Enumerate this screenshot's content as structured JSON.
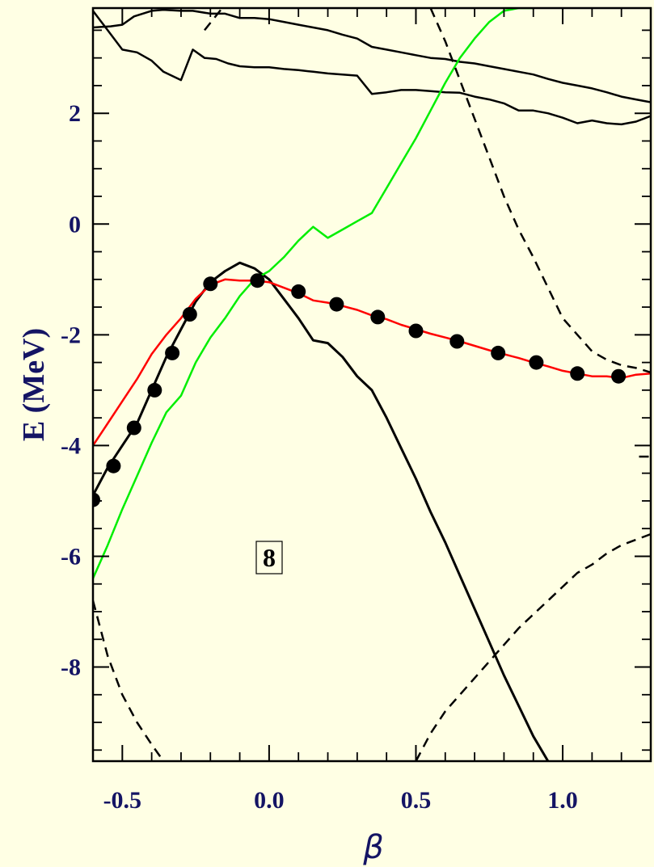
{
  "chart_data": {
    "type": "line",
    "xlabel": "β",
    "ylabel": "E (MeV)",
    "xlim": [
      -0.6,
      1.3
    ],
    "ylim": [
      -9.7,
      3.9
    ],
    "x_ticks": [
      -0.5,
      0.0,
      0.5,
      1.0
    ],
    "x_tick_labels": [
      "-0.5",
      "0.0",
      "0.5",
      "1.0"
    ],
    "y_ticks": [
      -8,
      -6,
      -4,
      -2,
      0,
      2
    ],
    "y_tick_labels": [
      "-8",
      "-6",
      "-4",
      "-2",
      "0",
      "2"
    ],
    "annotation": "8",
    "grid": false,
    "series": [
      {
        "style": "solid",
        "color": "#000000",
        "x": [
          -0.6,
          -0.54,
          -0.5,
          -0.46,
          -0.4,
          -0.36,
          -0.3,
          -0.26,
          -0.2,
          -0.15,
          -0.1,
          -0.05,
          0.0,
          0.05,
          0.1,
          0.15,
          0.2,
          0.25,
          0.3,
          0.35,
          0.4,
          0.45,
          0.5,
          0.55,
          0.6,
          0.65,
          0.7,
          0.75,
          0.8,
          0.85,
          0.9,
          0.95,
          1.0,
          1.05,
          1.1,
          1.15,
          1.2,
          1.25,
          1.3
        ],
        "y": [
          3.55,
          3.57,
          3.6,
          3.75,
          3.85,
          3.87,
          3.85,
          3.85,
          3.8,
          3.8,
          3.72,
          3.72,
          3.7,
          3.65,
          3.6,
          3.55,
          3.5,
          3.42,
          3.35,
          3.2,
          3.15,
          3.1,
          3.05,
          3.0,
          2.98,
          2.93,
          2.9,
          2.85,
          2.8,
          2.75,
          2.7,
          2.62,
          2.55,
          2.5,
          2.45,
          2.38,
          2.3,
          2.25,
          2.2
        ]
      },
      {
        "style": "solid",
        "color": "#000000",
        "x": [
          -0.6,
          -0.55,
          -0.5,
          -0.45,
          -0.4,
          -0.36,
          -0.3,
          -0.26,
          -0.22,
          -0.18,
          -0.14,
          -0.1,
          -0.05,
          0.0,
          0.05,
          0.1,
          0.15,
          0.2,
          0.25,
          0.3,
          0.35,
          0.4,
          0.45,
          0.5,
          0.55,
          0.6,
          0.65,
          0.7,
          0.75,
          0.8,
          0.85,
          0.9,
          0.95,
          1.0,
          1.05,
          1.1,
          1.15,
          1.2,
          1.25,
          1.3
        ],
        "y": [
          3.85,
          3.5,
          3.15,
          3.1,
          2.95,
          2.75,
          2.6,
          3.15,
          3.0,
          2.98,
          2.9,
          2.85,
          2.83,
          2.83,
          2.8,
          2.78,
          2.75,
          2.72,
          2.7,
          2.68,
          2.35,
          2.38,
          2.42,
          2.42,
          2.4,
          2.38,
          2.37,
          2.3,
          2.25,
          2.18,
          2.05,
          2.05,
          2.0,
          1.92,
          1.82,
          1.87,
          1.82,
          1.8,
          1.85,
          1.95
        ]
      },
      {
        "style": "solid",
        "color": "#000000",
        "x": [
          -0.6,
          -0.55,
          -0.5,
          -0.45,
          -0.4,
          -0.35,
          -0.3,
          -0.25,
          -0.2,
          -0.15,
          -0.1,
          -0.05,
          0.0,
          0.05,
          0.1,
          0.15,
          0.2,
          0.25,
          0.3,
          0.35,
          0.4,
          0.45,
          0.5,
          0.55,
          0.6,
          0.65,
          0.7,
          0.75,
          0.8,
          0.85,
          0.9,
          0.95
        ],
        "y": [
          -4.9,
          -4.4,
          -4.0,
          -3.6,
          -3.0,
          -2.4,
          -1.9,
          -1.4,
          -1.05,
          -0.85,
          -0.7,
          -0.8,
          -1.0,
          -1.35,
          -1.7,
          -2.1,
          -2.15,
          -2.4,
          -2.75,
          -3.0,
          -3.5,
          -4.05,
          -4.6,
          -5.2,
          -5.75,
          -6.35,
          -6.95,
          -7.55,
          -8.15,
          -8.7,
          -9.25,
          -9.7
        ]
      },
      {
        "style": "solid",
        "color": "#ff0000",
        "x": [
          -0.6,
          -0.55,
          -0.5,
          -0.45,
          -0.4,
          -0.35,
          -0.3,
          -0.25,
          -0.2,
          -0.15,
          -0.1,
          -0.05,
          0.0,
          0.05,
          0.1,
          0.15,
          0.2,
          0.25,
          0.3,
          0.35,
          0.4,
          0.45,
          0.5,
          0.55,
          0.6,
          0.65,
          0.7,
          0.75,
          0.8,
          0.85,
          0.9,
          0.95,
          1.0,
          1.05,
          1.1,
          1.15,
          1.2,
          1.25,
          1.3
        ],
        "y": [
          -4.0,
          -3.6,
          -3.2,
          -2.8,
          -2.35,
          -2.0,
          -1.7,
          -1.35,
          -1.1,
          -1.0,
          -1.02,
          -1.02,
          -1.05,
          -1.15,
          -1.25,
          -1.38,
          -1.42,
          -1.48,
          -1.55,
          -1.65,
          -1.72,
          -1.82,
          -1.9,
          -1.98,
          -2.05,
          -2.12,
          -2.2,
          -2.28,
          -2.35,
          -2.42,
          -2.5,
          -2.57,
          -2.65,
          -2.7,
          -2.75,
          -2.75,
          -2.78,
          -2.72,
          -2.7
        ]
      },
      {
        "style": "solid",
        "color": "#00ee00",
        "x": [
          -0.6,
          -0.55,
          -0.5,
          -0.45,
          -0.4,
          -0.35,
          -0.3,
          -0.25,
          -0.2,
          -0.15,
          -0.1,
          -0.05,
          0.0,
          0.05,
          0.1,
          0.15,
          0.2,
          0.25,
          0.3,
          0.35,
          0.4,
          0.45,
          0.5,
          0.55,
          0.6,
          0.65,
          0.7,
          0.75,
          0.8,
          0.85,
          0.9
        ],
        "y": [
          -6.4,
          -5.8,
          -5.15,
          -4.55,
          -3.95,
          -3.4,
          -3.1,
          -2.5,
          -2.05,
          -1.7,
          -1.3,
          -1.0,
          -0.85,
          -0.6,
          -0.3,
          -0.05,
          -0.25,
          -0.1,
          0.05,
          0.2,
          0.65,
          1.1,
          1.55,
          2.05,
          2.55,
          3.0,
          3.35,
          3.65,
          3.85,
          3.9,
          3.9
        ]
      },
      {
        "style": "dashed",
        "color": "#000000",
        "x": [
          0.55,
          0.6,
          0.65,
          0.7,
          0.75,
          0.8,
          0.85,
          0.9,
          0.95,
          1.0,
          1.05,
          1.1,
          1.15,
          1.2,
          1.25,
          1.3
        ],
        "y": [
          3.9,
          3.3,
          2.6,
          1.9,
          1.2,
          0.5,
          -0.1,
          -0.6,
          -1.15,
          -1.7,
          -2.0,
          -2.3,
          -2.45,
          -2.55,
          -2.6,
          -2.68
        ]
      },
      {
        "style": "dashed",
        "color": "#000000",
        "x": [
          -0.6,
          -0.55,
          -0.5,
          -0.45,
          -0.4,
          -0.36
        ],
        "y": [
          -6.8,
          -7.8,
          -8.5,
          -9.0,
          -9.4,
          -9.7
        ]
      },
      {
        "style": "dashed",
        "color": "#000000",
        "x": [
          0.5,
          0.55,
          0.6,
          0.65,
          0.7,
          0.75,
          0.8,
          0.85,
          0.9,
          0.95,
          1.0,
          1.05,
          1.1,
          1.15,
          1.2,
          1.25,
          1.3
        ],
        "y": [
          -9.7,
          -9.2,
          -8.8,
          -8.5,
          -8.2,
          -7.9,
          -7.6,
          -7.3,
          -7.05,
          -6.8,
          -6.55,
          -6.3,
          -6.15,
          -5.95,
          -5.8,
          -5.7,
          -5.6
        ]
      },
      {
        "style": "dashed",
        "color": "#000000",
        "x": [
          -0.22,
          -0.19,
          -0.16
        ],
        "y": [
          3.5,
          3.7,
          3.9
        ]
      },
      {
        "style": "dashed",
        "color": "#000000",
        "x": [
          1.26,
          1.3
        ],
        "y": [
          -4.2,
          -4.2
        ]
      },
      {
        "style": "points",
        "color": "#000000",
        "x": [
          -0.6,
          -0.53,
          -0.46,
          -0.39,
          -0.33,
          -0.27,
          -0.2,
          -0.04,
          0.1,
          0.23,
          0.37,
          0.5,
          0.64,
          0.78,
          0.91,
          1.05,
          1.19
        ],
        "y": [
          -4.98,
          -4.37,
          -3.68,
          -3.0,
          -2.33,
          -1.63,
          -1.08,
          -1.02,
          -1.22,
          -1.45,
          -1.68,
          -1.93,
          -2.12,
          -2.33,
          -2.5,
          -2.7,
          -2.75
        ]
      }
    ]
  }
}
